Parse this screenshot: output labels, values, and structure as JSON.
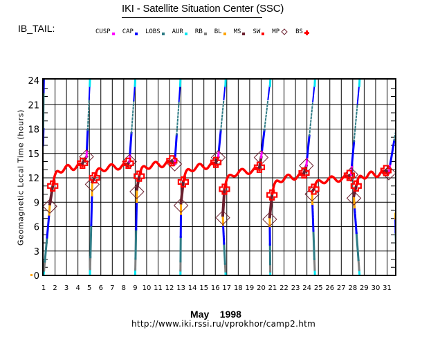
{
  "header": {
    "title": "IKI - Satellite Situation Center (SSC)",
    "satellite_label": "IB_TAIL:"
  },
  "legend": [
    {
      "name": "CUSP",
      "color": "#ff00ff",
      "marker": "dot"
    },
    {
      "name": "CAP",
      "color": "#0000ff",
      "marker": "dot"
    },
    {
      "name": "LOBS",
      "color": "#2e7b85",
      "marker": "dot"
    },
    {
      "name": "AUR",
      "color": "#00e5f0",
      "marker": "dot"
    },
    {
      "name": "RB",
      "color": "#808080",
      "marker": "dot"
    },
    {
      "name": "BL",
      "color": "#ffa500",
      "marker": "dot"
    },
    {
      "name": "MS",
      "color": "#6b1f2e",
      "marker": "dot"
    },
    {
      "name": "SW",
      "color": "#ff0000",
      "marker": "dot"
    },
    {
      "name": "MP",
      "color": "#6b1f2e",
      "marker": "diamond"
    },
    {
      "name": "BS",
      "color": "#ff0000",
      "marker": "cross"
    }
  ],
  "footer": {
    "month_year": "May    1998",
    "url": "http://www.iki.rssi.ru/vprokhor/camp2.htm"
  },
  "chart_data": {
    "type": "scatter",
    "title": "IKI - Satellite Situation Center (SSC)",
    "xlabel": "May    1998",
    "ylabel": "Geomagnetic  Local  Time  (hours)",
    "xlim": [
      1,
      31.85
    ],
    "ylim": [
      0,
      24
    ],
    "x_ticks": [
      "1",
      "2",
      "3",
      "4",
      "5",
      "6",
      "7",
      "8",
      "9",
      "10",
      "11",
      "12",
      "13",
      "14",
      "15",
      "16",
      "17",
      "18",
      "19",
      "20",
      "21",
      "22",
      "23",
      "24",
      "25",
      "26",
      "27",
      "28",
      "29",
      "30",
      "31"
    ],
    "y_ticks": [
      "0",
      "3",
      "6",
      "9",
      "12",
      "15",
      "18",
      "21",
      "24"
    ],
    "grid": true,
    "legend_position": "top",
    "passes": [
      {
        "start_day": 1.0,
        "mp_in": [
          1.55,
          8.5
        ],
        "bs_in": [
          1.8,
          11.0
        ],
        "bs_out": [
          4.4,
          13.8
        ],
        "mp_out": [
          4.75,
          14.6
        ],
        "top_day": 5.05
      },
      {
        "start_day": 5.05,
        "mp_in": [
          5.25,
          11.2
        ],
        "bs_in": [
          5.45,
          12.0
        ],
        "bs_out": [
          8.4,
          13.8
        ],
        "mp_out": [
          8.5,
          14.0
        ],
        "top_day": 9.0
      },
      {
        "start_day": 9.0,
        "mp_in": [
          9.15,
          10.3
        ],
        "bs_in": [
          9.35,
          12.2
        ],
        "bs_out": [
          12.2,
          14.1
        ],
        "mp_out": [
          12.45,
          13.7
        ],
        "top_day": 12.95
      },
      {
        "start_day": 12.95,
        "mp_in": [
          13.0,
          8.6
        ],
        "bs_in": [
          13.2,
          11.5
        ],
        "bs_out": [
          16.05,
          13.9
        ],
        "mp_out": [
          16.25,
          14.5
        ],
        "top_day": 16.9
      },
      {
        "start_day": 16.9,
        "mp_in": [
          16.65,
          7.1
        ],
        "bs_in": [
          16.8,
          10.6
        ],
        "bs_out": [
          19.85,
          13.3
        ],
        "mp_out": [
          20.0,
          14.5
        ],
        "top_day": 20.8
      },
      {
        "start_day": 20.8,
        "mp_in": [
          20.75,
          6.9
        ],
        "bs_in": [
          20.95,
          9.9
        ],
        "bs_out": [
          23.75,
          12.6
        ],
        "mp_out": [
          23.95,
          13.5
        ],
        "top_day": 24.7
      },
      {
        "start_day": 24.7,
        "mp_in": [
          24.45,
          10.0
        ],
        "bs_in": [
          24.6,
          10.6
        ],
        "bs_out": [
          27.7,
          12.3
        ],
        "mp_out": [
          27.85,
          12.4
        ],
        "top_day": 28.6
      },
      {
        "start_day": 28.6,
        "mp_in": [
          28.1,
          9.5
        ],
        "bs_in": [
          28.3,
          11.0
        ],
        "bs_out": [
          30.9,
          12.9
        ],
        "mp_out": [
          31.15,
          12.6
        ],
        "top_day": 32.5
      },
      {
        "start_day": 31.85,
        "partial_top_hour": 7.6
      }
    ],
    "initial_segment": {
      "top_day": 1.0,
      "start_hour": 16.0
    }
  }
}
